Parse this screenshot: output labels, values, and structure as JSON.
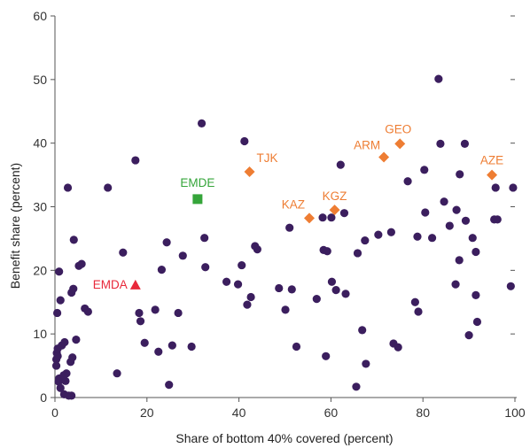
{
  "chart_data": {
    "type": "scatter",
    "xlabel": "Share of bottom 40% covered (percent)",
    "ylabel": "Benefit share (percent)",
    "xlim": [
      0,
      100
    ],
    "ylim": [
      0,
      60
    ],
    "xticks": [
      0,
      20,
      40,
      60,
      80,
      100
    ],
    "yticks": [
      0,
      10,
      20,
      30,
      40,
      50,
      60
    ],
    "grid": false,
    "colors": {
      "countries": "#3b1e5e",
      "highlighted": "#ee7d33",
      "emde": "#35a53a",
      "emda": "#e8283a",
      "axis": "#555555"
    },
    "series": [
      {
        "marker": "circle",
        "points": [
          [
            0.3,
            5
          ],
          [
            0.3,
            6
          ],
          [
            0.4,
            7
          ],
          [
            0.6,
            6.5
          ],
          [
            0.9,
            3
          ],
          [
            0.8,
            2.5
          ],
          [
            1.2,
            1.5
          ],
          [
            1.5,
            8.2
          ],
          [
            2.0,
            0.5
          ],
          [
            2.3,
            2.6
          ],
          [
            2.5,
            3.8
          ],
          [
            1.9,
            3.5
          ],
          [
            2.1,
            8.7
          ],
          [
            3.0,
            0.3
          ],
          [
            3.6,
            0.3
          ],
          [
            0.6,
            7.7
          ],
          [
            0.5,
            13.3
          ],
          [
            0.9,
            19.8
          ],
          [
            1.2,
            15.3
          ],
          [
            3.4,
            5.6
          ],
          [
            3.8,
            6.3
          ],
          [
            3.6,
            16.5
          ],
          [
            4.0,
            17.1
          ],
          [
            4.1,
            24.8
          ],
          [
            4.6,
            9.1
          ],
          [
            5.2,
            20.7
          ],
          [
            5.8,
            21
          ],
          [
            6.5,
            14
          ],
          [
            7.2,
            13.5
          ],
          [
            2.8,
            33
          ],
          [
            11.5,
            33
          ],
          [
            13.5,
            3.8
          ],
          [
            14.8,
            22.8
          ],
          [
            17.5,
            37.3
          ],
          [
            18.3,
            13.3
          ],
          [
            18.6,
            12
          ],
          [
            19.5,
            8.6
          ],
          [
            21.8,
            13.8
          ],
          [
            22.5,
            7.2
          ],
          [
            23.2,
            20.1
          ],
          [
            24.3,
            24.4
          ],
          [
            24.8,
            2
          ],
          [
            25.5,
            8.2
          ],
          [
            26.8,
            13.3
          ],
          [
            27.8,
            22.3
          ],
          [
            29.7,
            8
          ],
          [
            31.9,
            43.1
          ],
          [
            32.5,
            25.1
          ],
          [
            32.7,
            20.5
          ],
          [
            37.3,
            18.2
          ],
          [
            39.8,
            17.8
          ],
          [
            40.6,
            20.8
          ],
          [
            41.2,
            40.3
          ],
          [
            41.8,
            14.6
          ],
          [
            42.6,
            15.8
          ],
          [
            43.5,
            23.8
          ],
          [
            44.0,
            23.3
          ],
          [
            48.7,
            17.2
          ],
          [
            50.1,
            13.8
          ],
          [
            51.0,
            26.7
          ],
          [
            51.5,
            17
          ],
          [
            52.5,
            8
          ],
          [
            56.9,
            15.5
          ],
          [
            58.2,
            28.3
          ],
          [
            58.4,
            23.2
          ],
          [
            58.9,
            6.5
          ],
          [
            59.2,
            23
          ],
          [
            60.1,
            28.3
          ],
          [
            60.2,
            18.2
          ],
          [
            61.1,
            16.9
          ],
          [
            62.1,
            36.6
          ],
          [
            62.9,
            29
          ],
          [
            63.2,
            16.3
          ],
          [
            65.5,
            1.7
          ],
          [
            65.8,
            22.7
          ],
          [
            66.8,
            10.6
          ],
          [
            67.4,
            24.7
          ],
          [
            67.6,
            5.3
          ],
          [
            70.3,
            25.6
          ],
          [
            73.1,
            26
          ],
          [
            73.6,
            8.5
          ],
          [
            74.6,
            7.9
          ],
          [
            76.7,
            34
          ],
          [
            78.3,
            15
          ],
          [
            78.8,
            25.3
          ],
          [
            79.0,
            13.5
          ],
          [
            80.3,
            35.8
          ],
          [
            80.5,
            29.1
          ],
          [
            82.0,
            25.1
          ],
          [
            83.4,
            50.1
          ],
          [
            83.8,
            39.9
          ],
          [
            84.6,
            30.8
          ],
          [
            85.8,
            27
          ],
          [
            87.1,
            17.8
          ],
          [
            87.3,
            29.5
          ],
          [
            87.9,
            21.6
          ],
          [
            88.0,
            35.1
          ],
          [
            89.1,
            39.9
          ],
          [
            89.3,
            27.8
          ],
          [
            90.0,
            9.8
          ],
          [
            90.8,
            25.1
          ],
          [
            91.5,
            22.9
          ],
          [
            91.5,
            16.1
          ],
          [
            91.8,
            11.9
          ],
          [
            95.5,
            28
          ],
          [
            95.8,
            33
          ],
          [
            96.2,
            28
          ],
          [
            99.1,
            17.5
          ],
          [
            99.6,
            33
          ]
        ]
      },
      {
        "marker": "diamond",
        "points": [
          {
            "label": "TJK",
            "x": 42.3,
            "y": 35.5
          },
          {
            "label": "KAZ",
            "x": 55.3,
            "y": 28.2
          },
          {
            "label": "KGZ",
            "x": 60.8,
            "y": 29.5
          },
          {
            "label": "ARM",
            "x": 71.5,
            "y": 37.8
          },
          {
            "label": "GEO",
            "x": 75.0,
            "y": 39.9
          },
          {
            "label": "AZE",
            "x": 95.0,
            "y": 35.0
          }
        ]
      },
      {
        "marker": "square",
        "points": [
          {
            "label": "EMDE",
            "x": 31.0,
            "y": 31.2
          }
        ]
      },
      {
        "marker": "triangle",
        "points": [
          {
            "label": "EMDA",
            "x": 17.5,
            "y": 17.7
          }
        ]
      }
    ]
  }
}
